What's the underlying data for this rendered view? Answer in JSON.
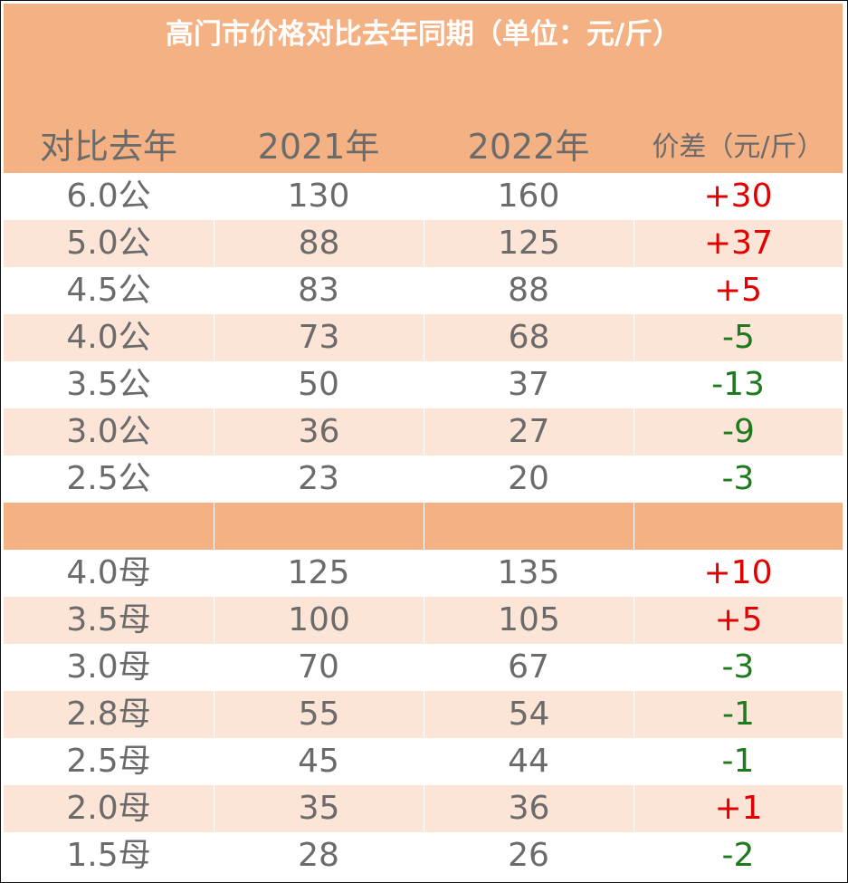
{
  "title": "高门市价格对比去年同期（单位：元/斤）",
  "header": {
    "col1": "对比去年",
    "col2": "2021年",
    "col3": "2022年",
    "col4": "价差（元/斤）"
  },
  "colors": {
    "header_bg": "#f4b183",
    "row_shade": "#fce4d6",
    "positive": "#e00000",
    "negative": "#1f7a1f",
    "text": "#6b6b6b"
  },
  "male_rows": [
    {
      "spec": "6.0公",
      "y2021": "130",
      "y2022": "160",
      "diff": "+30"
    },
    {
      "spec": "5.0公",
      "y2021": "88",
      "y2022": "125",
      "diff": "+37"
    },
    {
      "spec": "4.5公",
      "y2021": "83",
      "y2022": "88",
      "diff": "+5"
    },
    {
      "spec": "4.0公",
      "y2021": "73",
      "y2022": "68",
      "diff": "-5"
    },
    {
      "spec": "3.5公",
      "y2021": "50",
      "y2022": "37",
      "diff": "-13"
    },
    {
      "spec": "3.0公",
      "y2021": "36",
      "y2022": "27",
      "diff": "-9"
    },
    {
      "spec": "2.5公",
      "y2021": "23",
      "y2022": "20",
      "diff": "-3"
    }
  ],
  "female_rows": [
    {
      "spec": "4.0母",
      "y2021": "125",
      "y2022": "135",
      "diff": "+10"
    },
    {
      "spec": "3.5母",
      "y2021": "100",
      "y2022": "105",
      "diff": "+5"
    },
    {
      "spec": "3.0母",
      "y2021": "70",
      "y2022": "67",
      "diff": "-3"
    },
    {
      "spec": "2.8母",
      "y2021": "55",
      "y2022": "54",
      "diff": "-1"
    },
    {
      "spec": "2.5母",
      "y2021": "45",
      "y2022": "44",
      "diff": "-1"
    },
    {
      "spec": "2.0母",
      "y2021": "35",
      "y2022": "36",
      "diff": "+1"
    },
    {
      "spec": "1.5母",
      "y2021": "28",
      "y2022": "26",
      "diff": "-2"
    }
  ]
}
